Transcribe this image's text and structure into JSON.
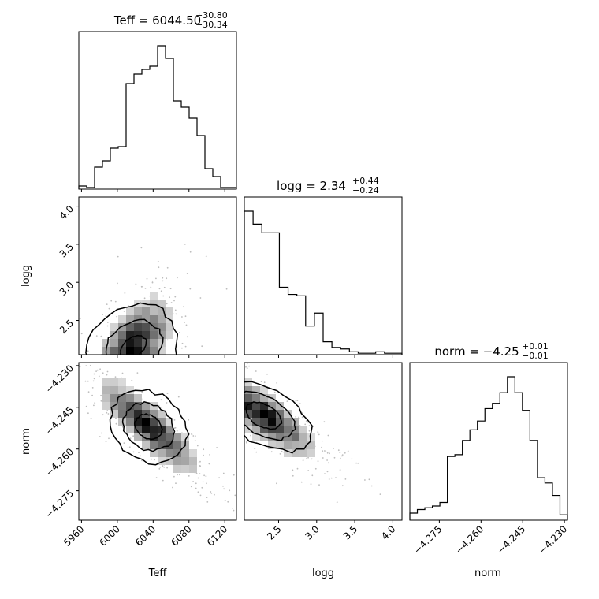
{
  "chart_data": {
    "type": "corner",
    "parameters": [
      "Teff",
      "logg",
      "norm"
    ],
    "titles": [
      {
        "prefix": "Teff = ",
        "value": "6044.50",
        "plus": "+30.80",
        "minus": "−30.34"
      },
      {
        "prefix": "logg = ",
        "value": "2.34",
        "plus": "+0.44",
        "minus": "−0.24"
      },
      {
        "prefix": "norm = ",
        "value": "−4.25",
        "plus": "+0.01",
        "minus": "−0.01"
      }
    ],
    "ranges": {
      "Teff": [
        5957,
        6133
      ],
      "logg": [
        2.05,
        4.12
      ],
      "norm": [
        -4.2856,
        -4.2289
      ]
    },
    "ticks": {
      "Teff": {
        "values": [
          5960,
          6000,
          6040,
          6080,
          6120
        ],
        "labels": [
          "5960",
          "6000",
          "6040",
          "6080",
          "6120"
        ]
      },
      "logg": {
        "values": [
          2.5,
          3.0,
          3.5,
          4.0
        ],
        "labels": [
          "2.5",
          "3.0",
          "3.5",
          "4.0"
        ]
      },
      "norm": {
        "values": [
          -4.275,
          -4.26,
          -4.245,
          -4.23
        ],
        "labels": [
          "−4.275",
          "−4.260",
          "−4.245",
          "−4.230"
        ]
      }
    },
    "histograms": {
      "Teff": [
        2,
        1,
        14,
        18,
        26,
        27,
        67,
        73,
        76,
        78,
        91,
        83,
        56,
        52,
        45,
        34,
        13,
        8,
        1,
        1
      ],
      "logg": [
        100,
        91,
        85,
        85,
        47,
        42,
        41,
        20,
        29,
        9,
        5,
        4,
        2,
        1,
        1,
        2,
        1,
        1
      ],
      "norm": [
        4,
        6,
        7,
        8,
        10,
        36,
        37,
        45,
        51,
        56,
        63,
        66,
        72,
        81,
        72,
        62,
        45,
        24,
        21,
        14,
        3
      ]
    },
    "contours_2d": [
      {
        "x": "Teff",
        "y": "logg",
        "density_center": [
          6018,
          2.15
        ],
        "levels": 3
      },
      {
        "x": "Teff",
        "y": "norm",
        "density_center": [
          6035,
          -4.25
        ],
        "levels": 3
      },
      {
        "x": "logg",
        "y": "norm",
        "density_center": [
          2.15,
          -4.246
        ],
        "levels": 3
      }
    ]
  }
}
